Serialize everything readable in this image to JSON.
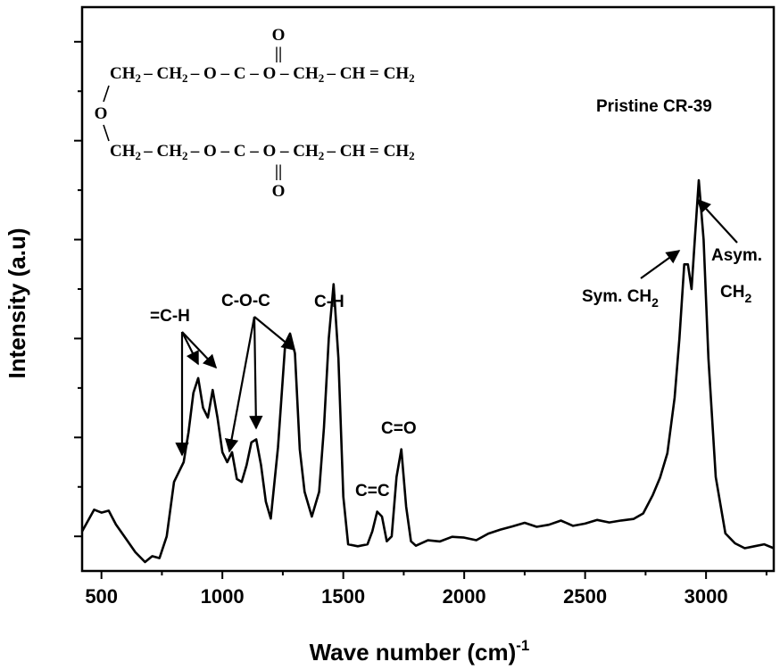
{
  "chart_data": {
    "type": "line",
    "xlabel": "Wave number (cm)",
    "xlabel_sup": "-1",
    "ylabel": "Intensity (a.u)",
    "xlim": [
      420,
      3280
    ],
    "ylim": [
      -0.35,
      5.35
    ],
    "xticks": [
      500,
      1000,
      1500,
      2000,
      2500,
      3000
    ],
    "y_ticks_labeled": false,
    "legend_text": "Pristine CR-39",
    "series": [
      {
        "x": [
          420,
          470,
          500,
          530,
          560,
          600,
          640,
          680,
          710,
          740,
          770,
          800,
          820,
          840,
          860,
          880,
          900,
          920,
          940,
          960,
          980,
          1000,
          1020,
          1040,
          1060,
          1080,
          1100,
          1120,
          1140,
          1160,
          1180,
          1200,
          1230,
          1260,
          1280,
          1300,
          1320,
          1340,
          1370,
          1400,
          1420,
          1440,
          1460,
          1480,
          1500,
          1520,
          1560,
          1600,
          1620,
          1640,
          1660,
          1680,
          1700,
          1720,
          1740,
          1760,
          1780,
          1800,
          1850,
          1900,
          1950,
          2000,
          2050,
          2100,
          2150,
          2200,
          2250,
          2300,
          2350,
          2400,
          2450,
          2500,
          2550,
          2600,
          2650,
          2700,
          2740,
          2780,
          2810,
          2840,
          2870,
          2890,
          2910,
          2925,
          2940,
          2955,
          2970,
          2990,
          3010,
          3040,
          3080,
          3120,
          3160,
          3200,
          3240,
          3280
        ],
        "y": [
          0.05,
          0.27,
          0.24,
          0.26,
          0.12,
          -0.02,
          -0.16,
          -0.26,
          -0.2,
          -0.22,
          0.0,
          0.55,
          0.65,
          0.75,
          1.05,
          1.45,
          1.6,
          1.3,
          1.2,
          1.48,
          1.2,
          0.85,
          0.75,
          0.85,
          0.58,
          0.55,
          0.72,
          0.95,
          0.98,
          0.72,
          0.35,
          0.18,
          0.9,
          1.95,
          2.05,
          1.85,
          0.88,
          0.45,
          0.2,
          0.45,
          1.1,
          2.0,
          2.55,
          1.8,
          0.4,
          -0.08,
          -0.1,
          -0.08,
          0.05,
          0.25,
          0.2,
          -0.05,
          0.0,
          0.6,
          0.88,
          0.3,
          -0.05,
          -0.08,
          -0.06,
          -0.04,
          0.0,
          -0.03,
          -0.02,
          0.02,
          0.06,
          0.12,
          0.12,
          0.1,
          0.13,
          0.14,
          0.12,
          0.13,
          0.15,
          0.16,
          0.15,
          0.17,
          0.25,
          0.4,
          0.6,
          0.85,
          1.4,
          2.0,
          2.75,
          2.75,
          2.5,
          3.05,
          3.6,
          3.0,
          1.8,
          0.6,
          0.03,
          -0.07,
          -0.12,
          -0.1,
          -0.08,
          -0.12
        ]
      }
    ],
    "annotations": [
      "=C-H",
      "C-O-C",
      "C-H",
      "C=C",
      "C=O",
      "Sym. CH",
      "2",
      "Asym.",
      "CH",
      "2"
    ],
    "inset_structure": {
      "top_line": [
        "CH",
        "2",
        "–",
        "CH",
        "2",
        "–",
        "O",
        "–",
        "C",
        "–",
        "O",
        "–",
        "CH",
        "2",
        "–",
        "CH",
        "=",
        "CH",
        "2"
      ],
      "bottom_line": [
        "CH",
        "2",
        "–",
        "CH",
        "2",
        "–",
        "O",
        "–",
        "C",
        "–",
        "O",
        "–",
        "CH",
        "2",
        "–",
        "CH",
        "=",
        "CH",
        "2"
      ],
      "top_carbonyl_O": "O",
      "bottom_carbonyl_O": "O",
      "double_bond": "||",
      "ether_O": "O"
    }
  }
}
